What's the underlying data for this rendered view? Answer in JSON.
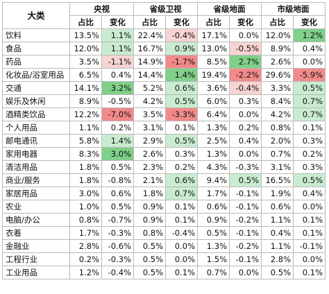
{
  "table": {
    "corner_label": "大类",
    "groups": [
      "央视",
      "省级卫视",
      "省级地面",
      "市级地面"
    ],
    "sub_headers": [
      "占比",
      "变化"
    ],
    "colors": {
      "green": "#7fd089",
      "light_green": "#c9ecd0",
      "red": "#f28a8a",
      "light_red": "#f8d3d3"
    },
    "rows": [
      {
        "category": "饮料",
        "cells": [
          {
            "v": "13.5%",
            "c": ""
          },
          {
            "v": "1.1%",
            "c": "lg"
          },
          {
            "v": "22.4%",
            "c": ""
          },
          {
            "v": "-0.4%",
            "c": "lr"
          },
          {
            "v": "17.1%",
            "c": ""
          },
          {
            "v": "0.0%",
            "c": ""
          },
          {
            "v": "12.0%",
            "c": ""
          },
          {
            "v": "1.2%",
            "c": "g"
          }
        ]
      },
      {
        "category": "食品",
        "cells": [
          {
            "v": "12.0%",
            "c": ""
          },
          {
            "v": "1.1%",
            "c": "lg"
          },
          {
            "v": "16.7%",
            "c": ""
          },
          {
            "v": "0.9%",
            "c": "lg"
          },
          {
            "v": "13.0%",
            "c": ""
          },
          {
            "v": "-0.5%",
            "c": "lr"
          },
          {
            "v": "8.9%",
            "c": ""
          },
          {
            "v": "0.4%",
            "c": ""
          }
        ]
      },
      {
        "category": "药品",
        "cells": [
          {
            "v": "3.5%",
            "c": ""
          },
          {
            "v": "-1.1%",
            "c": "lr"
          },
          {
            "v": "14.9%",
            "c": ""
          },
          {
            "v": "-1.7%",
            "c": "r"
          },
          {
            "v": "8.5%",
            "c": ""
          },
          {
            "v": "2.7%",
            "c": "g"
          },
          {
            "v": "2.6%",
            "c": ""
          },
          {
            "v": "0.0%",
            "c": ""
          }
        ]
      },
      {
        "category": "化妆品/浴室用品",
        "cells": [
          {
            "v": "6.5%",
            "c": ""
          },
          {
            "v": "0.4%",
            "c": ""
          },
          {
            "v": "14.4%",
            "c": ""
          },
          {
            "v": "1.4%",
            "c": "g"
          },
          {
            "v": "19.4%",
            "c": ""
          },
          {
            "v": "-2.2%",
            "c": "r"
          },
          {
            "v": "29.6%",
            "c": ""
          },
          {
            "v": "-5.9%",
            "c": "r"
          }
        ]
      },
      {
        "category": "交通",
        "cells": [
          {
            "v": "14.1%",
            "c": ""
          },
          {
            "v": "3.2%",
            "c": "g"
          },
          {
            "v": "5.2%",
            "c": ""
          },
          {
            "v": "0.6%",
            "c": "lg"
          },
          {
            "v": "3.6%",
            "c": ""
          },
          {
            "v": "-0.4%",
            "c": "lr"
          },
          {
            "v": "3.3%",
            "c": ""
          },
          {
            "v": "0.5%",
            "c": "lg"
          }
        ]
      },
      {
        "category": "娱乐及休闲",
        "cells": [
          {
            "v": "8.9%",
            "c": ""
          },
          {
            "v": "-0.5%",
            "c": ""
          },
          {
            "v": "4.2%",
            "c": ""
          },
          {
            "v": "0.5%",
            "c": "lg"
          },
          {
            "v": "6.0%",
            "c": ""
          },
          {
            "v": "0.3%",
            "c": ""
          },
          {
            "v": "8.4%",
            "c": ""
          },
          {
            "v": "0.7%",
            "c": "lg"
          }
        ]
      },
      {
        "category": "酒精类饮品",
        "cells": [
          {
            "v": "12.2%",
            "c": ""
          },
          {
            "v": "-7.0%",
            "c": "r"
          },
          {
            "v": "3.5%",
            "c": ""
          },
          {
            "v": "-3.3%",
            "c": "r"
          },
          {
            "v": "6.4%",
            "c": ""
          },
          {
            "v": "0.0%",
            "c": ""
          },
          {
            "v": "4.2%",
            "c": ""
          },
          {
            "v": "0.7%",
            "c": "lg"
          }
        ]
      },
      {
        "category": "个人用品",
        "cells": [
          {
            "v": "1.1%",
            "c": ""
          },
          {
            "v": "0.2%",
            "c": ""
          },
          {
            "v": "3.1%",
            "c": ""
          },
          {
            "v": "0.1%",
            "c": ""
          },
          {
            "v": "1.3%",
            "c": ""
          },
          {
            "v": "0.2%",
            "c": ""
          },
          {
            "v": "0.8%",
            "c": ""
          },
          {
            "v": "0.1%",
            "c": ""
          }
        ]
      },
      {
        "category": "邮电通讯",
        "cells": [
          {
            "v": "5.8%",
            "c": ""
          },
          {
            "v": "1.4%",
            "c": "lg"
          },
          {
            "v": "2.9%",
            "c": ""
          },
          {
            "v": "0.5%",
            "c": "lg"
          },
          {
            "v": "2.5%",
            "c": ""
          },
          {
            "v": "0.4%",
            "c": ""
          },
          {
            "v": "2.0%",
            "c": ""
          },
          {
            "v": "0.3%",
            "c": ""
          }
        ]
      },
      {
        "category": "家用电器",
        "cells": [
          {
            "v": "8.3%",
            "c": ""
          },
          {
            "v": "3.0%",
            "c": "g"
          },
          {
            "v": "2.6%",
            "c": ""
          },
          {
            "v": "0.3%",
            "c": ""
          },
          {
            "v": "1.3%",
            "c": ""
          },
          {
            "v": "0.0%",
            "c": ""
          },
          {
            "v": "0.7%",
            "c": ""
          },
          {
            "v": "0.2%",
            "c": ""
          }
        ]
      },
      {
        "category": "清洁用品",
        "cells": [
          {
            "v": "1.8%",
            "c": ""
          },
          {
            "v": "0.5%",
            "c": ""
          },
          {
            "v": "2.3%",
            "c": ""
          },
          {
            "v": "0.2%",
            "c": ""
          },
          {
            "v": "4.3%",
            "c": ""
          },
          {
            "v": "-0.3%",
            "c": ""
          },
          {
            "v": "3.1%",
            "c": ""
          },
          {
            "v": "0.3%",
            "c": ""
          }
        ]
      },
      {
        "category": "商业/服务",
        "cells": [
          {
            "v": "1.8%",
            "c": ""
          },
          {
            "v": "-0.8%",
            "c": ""
          },
          {
            "v": "2.1%",
            "c": ""
          },
          {
            "v": "0.6%",
            "c": "lg"
          },
          {
            "v": "9.4%",
            "c": ""
          },
          {
            "v": "0.5%",
            "c": "lg"
          },
          {
            "v": "16.5%",
            "c": ""
          },
          {
            "v": "0.5%",
            "c": "lg"
          }
        ]
      },
      {
        "category": "家居用品",
        "cells": [
          {
            "v": "3.0%",
            "c": ""
          },
          {
            "v": "0.6%",
            "c": ""
          },
          {
            "v": "1.8%",
            "c": ""
          },
          {
            "v": "0.7%",
            "c": "lg"
          },
          {
            "v": "1.7%",
            "c": ""
          },
          {
            "v": "-0.1%",
            "c": ""
          },
          {
            "v": "1.9%",
            "c": ""
          },
          {
            "v": "0.4%",
            "c": ""
          }
        ]
      },
      {
        "category": "农业",
        "cells": [
          {
            "v": "1.0%",
            "c": ""
          },
          {
            "v": "0.5%",
            "c": ""
          },
          {
            "v": "0.9%",
            "c": ""
          },
          {
            "v": "0.1%",
            "c": ""
          },
          {
            "v": "0.6%",
            "c": ""
          },
          {
            "v": "-0.1%",
            "c": ""
          },
          {
            "v": "0.6%",
            "c": ""
          },
          {
            "v": "0.0%",
            "c": ""
          }
        ]
      },
      {
        "category": "电脑/办公",
        "cells": [
          {
            "v": "0.8%",
            "c": ""
          },
          {
            "v": "-0.7%",
            "c": ""
          },
          {
            "v": "0.9%",
            "c": ""
          },
          {
            "v": "0.1%",
            "c": ""
          },
          {
            "v": "0.9%",
            "c": ""
          },
          {
            "v": "-0.2%",
            "c": ""
          },
          {
            "v": "1.1%",
            "c": ""
          },
          {
            "v": "0.1%",
            "c": ""
          }
        ]
      },
      {
        "category": "衣着",
        "cells": [
          {
            "v": "1.7%",
            "c": ""
          },
          {
            "v": "-0.3%",
            "c": ""
          },
          {
            "v": "0.8%",
            "c": ""
          },
          {
            "v": "-0.4%",
            "c": ""
          },
          {
            "v": "0.5%",
            "c": ""
          },
          {
            "v": "-0.1%",
            "c": ""
          },
          {
            "v": "0.4%",
            "c": ""
          },
          {
            "v": "0.1%",
            "c": ""
          }
        ]
      },
      {
        "category": "金融业",
        "cells": [
          {
            "v": "2.8%",
            "c": ""
          },
          {
            "v": "-0.6%",
            "c": ""
          },
          {
            "v": "0.5%",
            "c": ""
          },
          {
            "v": "0.0%",
            "c": ""
          },
          {
            "v": "1.3%",
            "c": ""
          },
          {
            "v": "-0.2%",
            "c": ""
          },
          {
            "v": "1.1%",
            "c": ""
          },
          {
            "v": "-0.1%",
            "c": ""
          }
        ]
      },
      {
        "category": "工程行业",
        "cells": [
          {
            "v": "0.2%",
            "c": ""
          },
          {
            "v": "-0.3%",
            "c": ""
          },
          {
            "v": "0.5%",
            "c": ""
          },
          {
            "v": "0.0%",
            "c": ""
          },
          {
            "v": "1.5%",
            "c": ""
          },
          {
            "v": "-0.1%",
            "c": ""
          },
          {
            "v": "2.8%",
            "c": ""
          },
          {
            "v": "0.0%",
            "c": ""
          }
        ]
      },
      {
        "category": "工业用品",
        "cells": [
          {
            "v": "1.2%",
            "c": ""
          },
          {
            "v": "-0.4%",
            "c": ""
          },
          {
            "v": "0.5%",
            "c": ""
          },
          {
            "v": "0.1%",
            "c": ""
          },
          {
            "v": "0.7%",
            "c": ""
          },
          {
            "v": "0.0%",
            "c": ""
          },
          {
            "v": "0.5%",
            "c": ""
          },
          {
            "v": "0.1%",
            "c": ""
          }
        ]
      }
    ]
  }
}
